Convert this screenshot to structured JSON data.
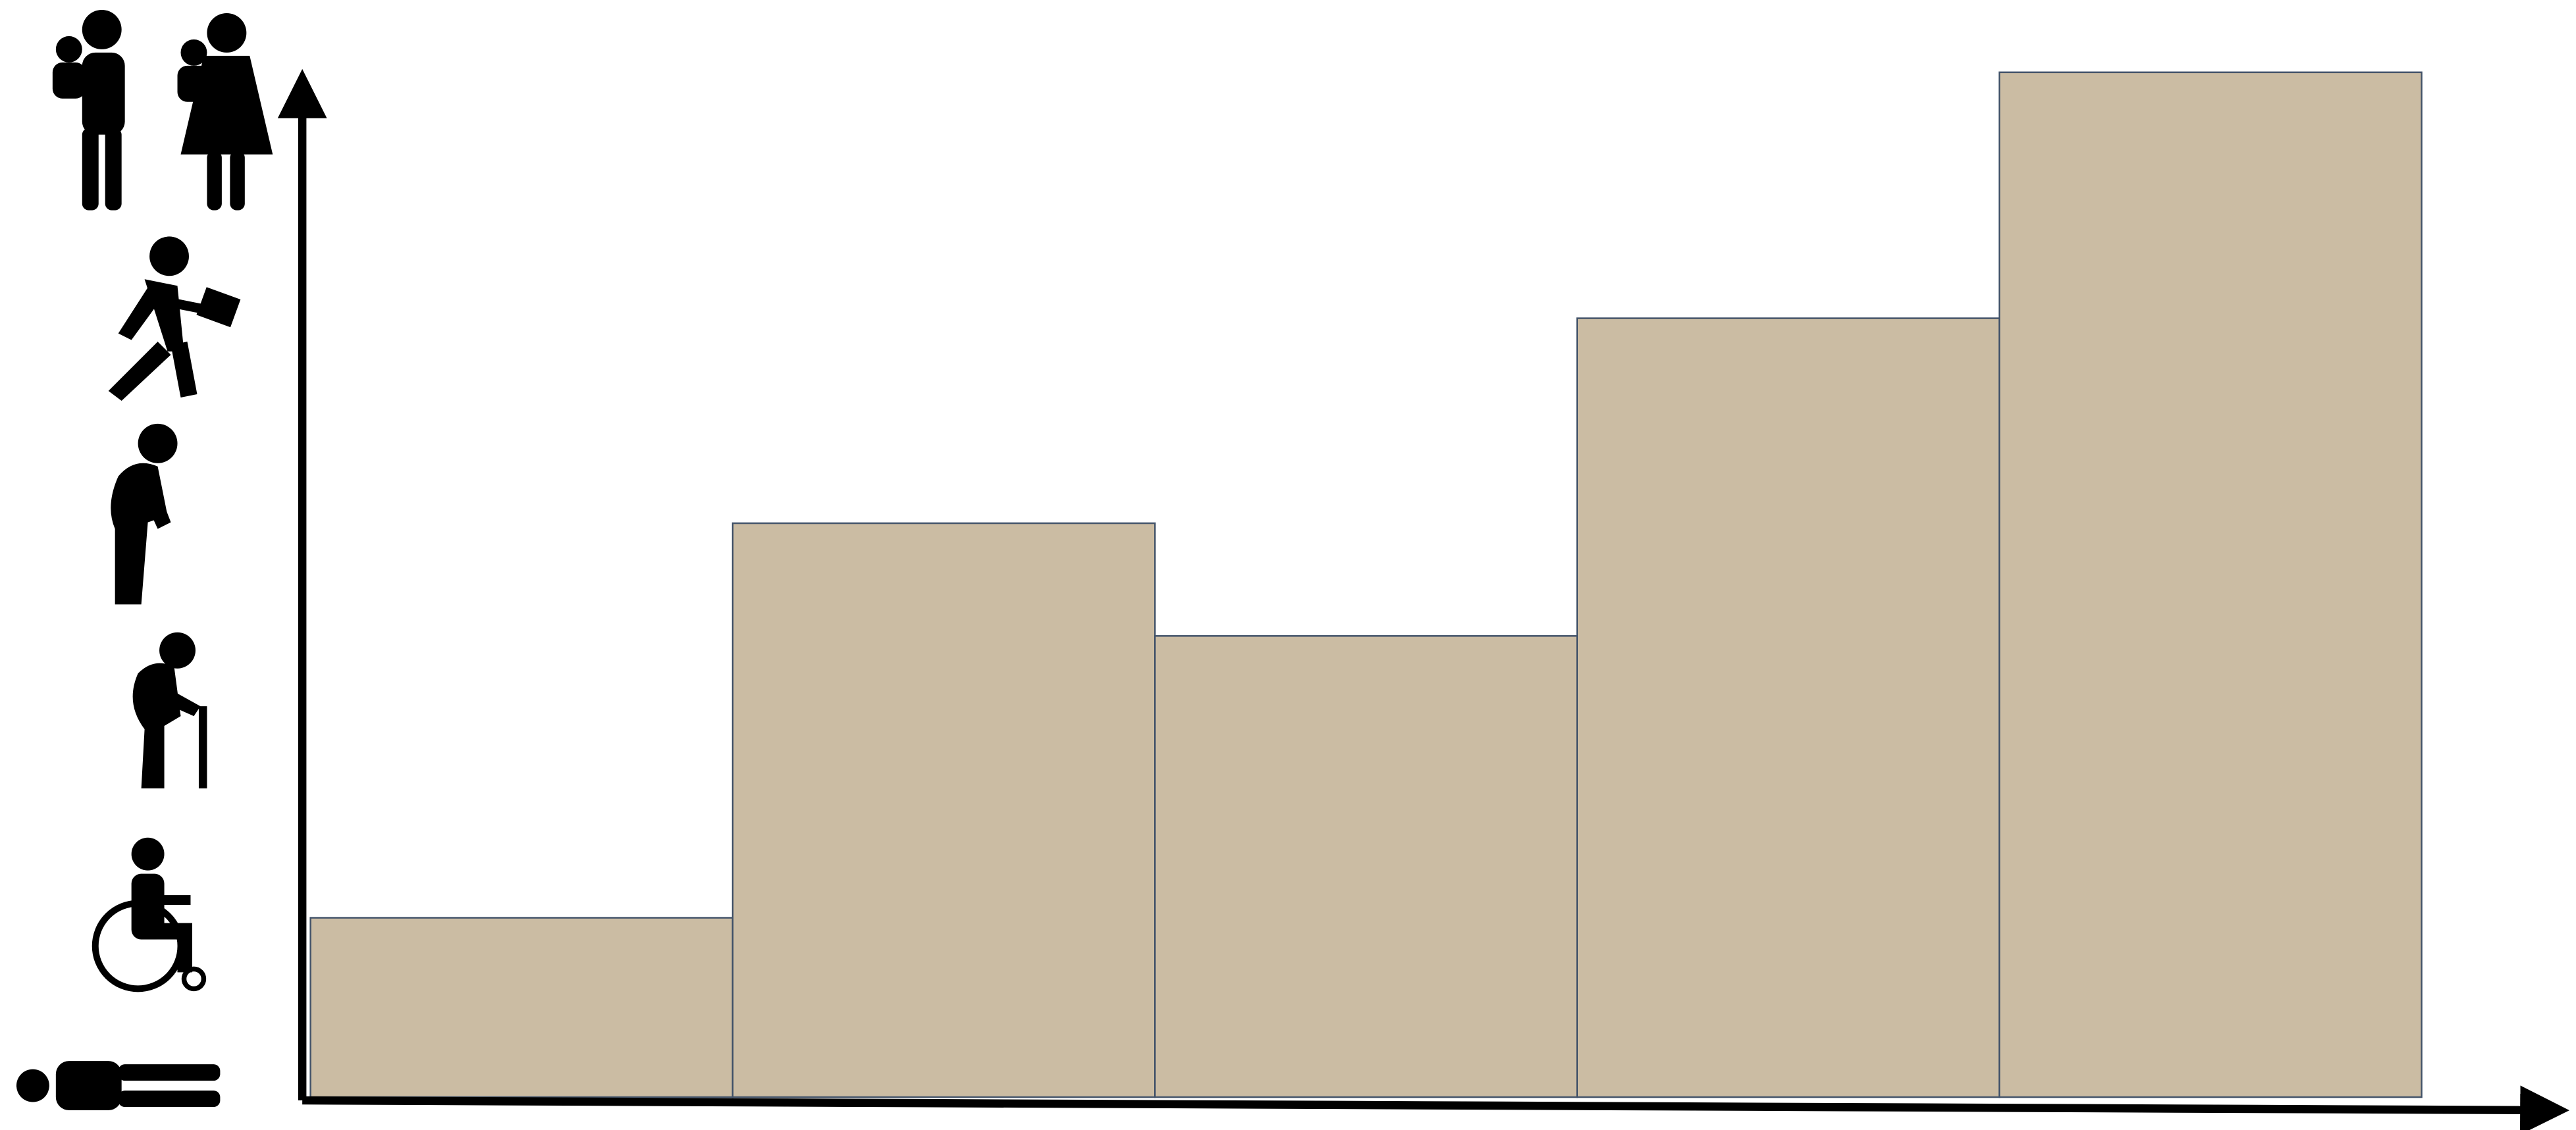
{
  "chart_data": {
    "type": "bar",
    "categories": [
      null,
      null,
      null,
      null,
      null
    ],
    "values": [
      17.5,
      56,
      45,
      76,
      100
    ],
    "color": "#cbbca3",
    "ylim": [
      0,
      100
    ]
  }
}
